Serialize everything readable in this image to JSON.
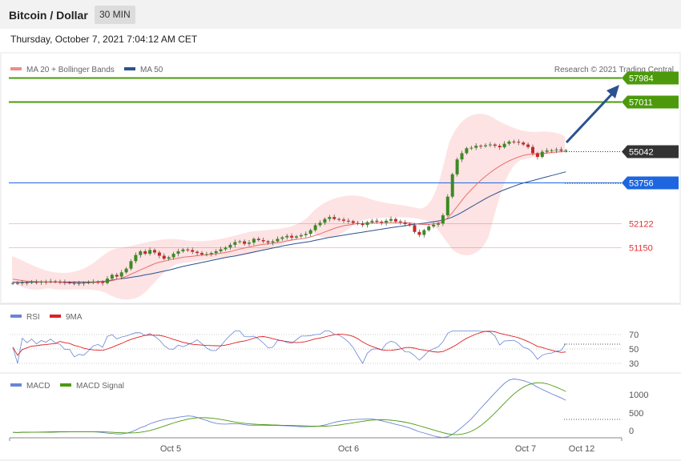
{
  "header": {
    "title": "Bitcoin / Dollar",
    "timeframe": "30 MIN"
  },
  "datetime": "Thursday, October 7, 2021 7:04:12 AM CET",
  "legend": [
    {
      "label": "MA 20 + Bollinger Bands",
      "color": "#f08a8a"
    },
    {
      "label": "MA 50",
      "color": "#2c5190"
    }
  ],
  "credit": "Research © 2021 Trading Central",
  "levels": [
    {
      "value": 57984,
      "label": "57984",
      "color": "#4c9a0c",
      "style": "box"
    },
    {
      "value": 57011,
      "label": "57011",
      "color": "#4c9a0c",
      "style": "box"
    },
    {
      "value": 55042,
      "label": "55042",
      "color": "#333333",
      "style": "box"
    },
    {
      "value": 53756,
      "label": "53756",
      "color": "#1e66e0",
      "style": "box"
    },
    {
      "value": 52122,
      "label": "52122",
      "color": "#e23030",
      "style": "text"
    },
    {
      "value": 51150,
      "label": "51150",
      "color": "#e23030",
      "style": "text"
    }
  ],
  "rsi": {
    "legend": [
      {
        "label": "RSI",
        "color": "#6a85d6"
      },
      {
        "label": "9MA",
        "color": "#e02020"
      }
    ],
    "ticks": [
      "70",
      "50",
      "30"
    ]
  },
  "macd": {
    "legend": [
      {
        "label": "MACD",
        "color": "#6a85d6"
      },
      {
        "label": "MACD Signal",
        "color": "#4c9a0c"
      }
    ],
    "ticks": [
      "1000",
      "500",
      "0"
    ]
  },
  "x_labels": [
    "Oct 5",
    "Oct 6",
    "Oct 7",
    "Oct 12"
  ],
  "chart_data": {
    "type": "candlestick",
    "price_range": [
      49000,
      58800
    ],
    "close": [
      49720,
      49710,
      49745,
      49735,
      49760,
      49740,
      49775,
      49765,
      49790,
      49780,
      49760,
      49740,
      49720,
      49700,
      49710,
      49730,
      49750,
      49770,
      49760,
      49720,
      49900,
      50050,
      49980,
      50150,
      50300,
      50600,
      50850,
      51000,
      50900,
      51050,
      50950,
      50820,
      50700,
      50760,
      50900,
      51000,
      51070,
      51050,
      50980,
      50930,
      50870,
      50880,
      50930,
      51000,
      51080,
      51150,
      51260,
      51370,
      51400,
      51300,
      51350,
      51500,
      51450,
      51400,
      51350,
      51400,
      51500,
      51560,
      51620,
      51550,
      51600,
      51650,
      51700,
      51850,
      52050,
      52150,
      52300,
      52380,
      52300,
      52280,
      52230,
      52210,
      52140,
      52120,
      52060,
      52170,
      52230,
      52190,
      52140,
      52230,
      52300,
      52200,
      52160,
      52100,
      52050,
      51780,
      51660,
      51850,
      52000,
      52070,
      52120,
      52450,
      53200,
      54100,
      54700,
      54950,
      55150,
      55170,
      55250,
      55230,
      55270,
      55300,
      55250,
      55190,
      55330,
      55420,
      55410,
      55380,
      55300,
      55200,
      54950,
      54800,
      55010,
      55060,
      55070,
      55100,
      55050,
      55070
    ],
    "ma50": [
      49750,
      49750,
      49750,
      49750,
      49760,
      49760,
      49760,
      49760,
      49760,
      49760,
      49760,
      49760,
      49760,
      49760,
      49760,
      49760,
      49760,
      49760,
      49770,
      49780,
      49810,
      49840,
      49870,
      49900,
      49920,
      49950,
      49980,
      50010,
      50050,
      50080,
      50120,
      50160,
      50200,
      50240,
      50290,
      50340,
      50390,
      50430,
      50470,
      50510,
      50550,
      50590,
      50630,
      50670,
      50710,
      50750,
      50780,
      50810,
      50850,
      50890,
      50930,
      50970,
      51010,
      51050,
      51090,
      51130,
      51170,
      51210,
      51250,
      51280,
      51310,
      51340,
      51370,
      51400,
      51440,
      51480,
      51520,
      51560,
      51590,
      51620,
      51650,
      51680,
      51710,
      51740,
      51770,
      51800,
      51830,
      51860,
      51890,
      51920,
      51950,
      51980,
      52000,
      52030,
      52060,
      52090,
      52110,
      52130,
      52160,
      52190,
      52220,
      52260,
      52310,
      52380,
      52470,
      52570,
      52680,
      52790,
      52900,
      53010,
      53120,
      53220,
      53310,
      53400,
      53480,
      53550,
      53620,
      53690,
      53750,
      53800,
      53850,
      53900,
      53950,
      54000,
      54050,
      54100,
      54150,
      54200
    ],
    "ma20": [
      49880,
      49850,
      49820,
      49800,
      49790,
      49780,
      49770,
      49760,
      49760,
      49760,
      49750,
      49740,
      49730,
      49720,
      49720,
      49720,
      49730,
      49740,
      49750,
      49760,
      49780,
      49820,
      49860,
      49920,
      49990,
      50080,
      50160,
      50250,
      50330,
      50420,
      50500,
      50560,
      50600,
      50650,
      50690,
      50720,
      50760,
      50780,
      50800,
      50820,
      50840,
      50860,
      50880,
      50900,
      50920,
      50950,
      50990,
      51040,
      51090,
      51130,
      51170,
      51210,
      51250,
      51280,
      51300,
      51320,
      51350,
      51380,
      51420,
      51450,
      51480,
      51500,
      51530,
      51580,
      51640,
      51700,
      51780,
      51850,
      51920,
      51980,
      52030,
      52060,
      52090,
      52110,
      52120,
      52130,
      52140,
      52150,
      52160,
      52160,
      52160,
      52160,
      52160,
      52150,
      52140,
      52120,
      52090,
      52080,
      52080,
      52100,
      52130,
      52200,
      52350,
      52560,
      52800,
      53050,
      53280,
      53480,
      53680,
      53860,
      54020,
      54170,
      54310,
      54430,
      54540,
      54640,
      54730,
      54800,
      54860,
      54900,
      54920,
      54920,
      54940,
      54960,
      54980,
      55000,
      55010,
      55020
    ]
  }
}
